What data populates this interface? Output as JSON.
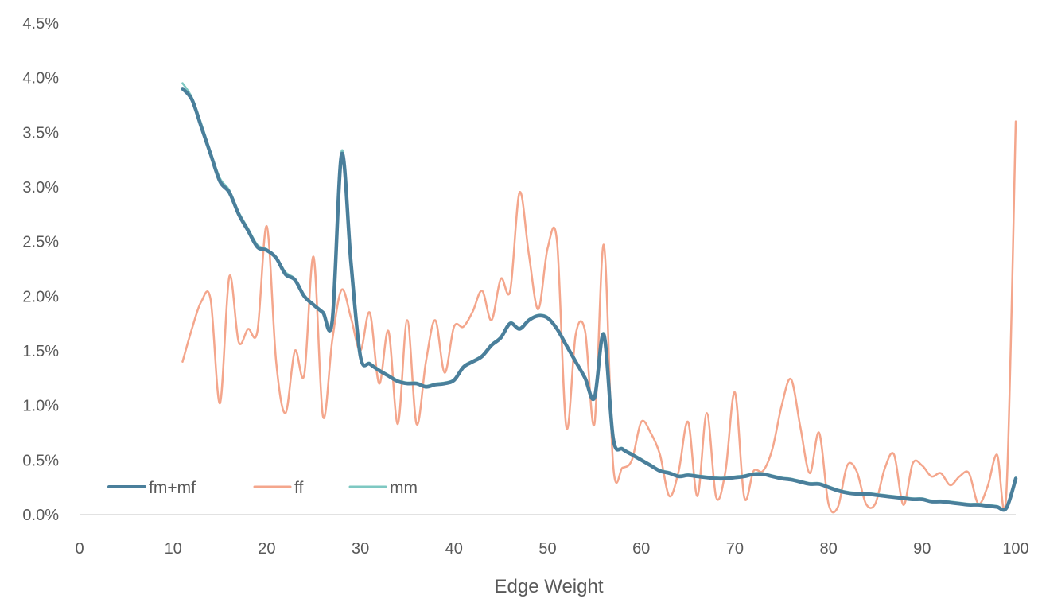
{
  "chart_data": {
    "type": "line",
    "title": "",
    "xlabel": "Edge Weight",
    "ylabel": "",
    "xlim": [
      0,
      100
    ],
    "ylim": [
      0,
      4.5
    ],
    "x_ticks": [
      "0",
      "10",
      "20",
      "30",
      "40",
      "50",
      "60",
      "70",
      "80",
      "90",
      "100"
    ],
    "y_ticks": [
      "0.0%",
      "0.5%",
      "1.0%",
      "1.5%",
      "2.0%",
      "2.5%",
      "3.0%",
      "3.5%",
      "4.0%",
      "4.5%"
    ],
    "grid": false,
    "legend_position": "bottom-left",
    "series": [
      {
        "name": "fm+mf",
        "color": "#4a7f9b",
        "x": [
          11,
          12,
          13,
          14,
          15,
          16,
          17,
          18,
          19,
          20,
          21,
          22,
          23,
          24,
          25,
          26,
          27,
          28,
          29,
          30,
          31,
          32,
          33,
          34,
          35,
          36,
          37,
          38,
          39,
          40,
          41,
          42,
          43,
          44,
          45,
          46,
          47,
          48,
          49,
          50,
          51,
          52,
          53,
          54,
          55,
          56,
          57,
          58,
          59,
          60,
          61,
          62,
          63,
          64,
          65,
          66,
          67,
          68,
          69,
          70,
          71,
          72,
          73,
          74,
          75,
          76,
          77,
          78,
          79,
          80,
          81,
          82,
          83,
          84,
          85,
          86,
          87,
          88,
          89,
          90,
          91,
          92,
          93,
          94,
          95,
          96,
          97,
          98,
          99,
          100
        ],
        "values": [
          3.9,
          3.8,
          3.55,
          3.3,
          3.05,
          2.95,
          2.75,
          2.6,
          2.45,
          2.42,
          2.35,
          2.2,
          2.15,
          2.0,
          1.92,
          1.85,
          1.78,
          3.3,
          2.3,
          1.45,
          1.38,
          1.32,
          1.27,
          1.22,
          1.2,
          1.2,
          1.17,
          1.19,
          1.2,
          1.23,
          1.35,
          1.4,
          1.45,
          1.55,
          1.62,
          1.75,
          1.7,
          1.78,
          1.82,
          1.8,
          1.7,
          1.55,
          1.4,
          1.25,
          1.07,
          1.65,
          0.7,
          0.6,
          0.55,
          0.5,
          0.45,
          0.4,
          0.38,
          0.35,
          0.36,
          0.35,
          0.34,
          0.33,
          0.33,
          0.34,
          0.35,
          0.37,
          0.37,
          0.35,
          0.33,
          0.32,
          0.3,
          0.28,
          0.28,
          0.25,
          0.22,
          0.2,
          0.19,
          0.19,
          0.18,
          0.17,
          0.16,
          0.15,
          0.14,
          0.14,
          0.12,
          0.12,
          0.11,
          0.1,
          0.09,
          0.09,
          0.08,
          0.07,
          0.06,
          0.33
        ]
      },
      {
        "name": "ff",
        "color": "#f4a68c",
        "x": [
          11,
          12,
          13,
          14,
          15,
          16,
          17,
          18,
          19,
          20,
          21,
          22,
          23,
          24,
          25,
          26,
          27,
          28,
          29,
          30,
          31,
          32,
          33,
          34,
          35,
          36,
          37,
          38,
          39,
          40,
          41,
          42,
          43,
          44,
          45,
          46,
          47,
          48,
          49,
          50,
          51,
          52,
          53,
          54,
          55,
          56,
          57,
          58,
          59,
          60,
          61,
          62,
          63,
          64,
          65,
          66,
          67,
          68,
          69,
          70,
          71,
          72,
          73,
          74,
          75,
          76,
          77,
          78,
          79,
          80,
          81,
          82,
          83,
          84,
          85,
          86,
          87,
          88,
          89,
          90,
          91,
          92,
          93,
          94,
          95,
          96,
          97,
          98,
          99,
          100
        ],
        "values": [
          1.4,
          1.7,
          1.95,
          1.97,
          1.02,
          2.18,
          1.58,
          1.7,
          1.68,
          2.64,
          1.4,
          0.93,
          1.5,
          1.28,
          2.36,
          0.9,
          1.6,
          2.06,
          1.8,
          1.5,
          1.85,
          1.2,
          1.68,
          0.83,
          1.78,
          0.83,
          1.4,
          1.78,
          1.3,
          1.72,
          1.72,
          1.86,
          2.05,
          1.78,
          2.16,
          2.05,
          2.95,
          2.38,
          1.88,
          2.44,
          2.5,
          0.8,
          1.65,
          1.68,
          0.83,
          2.47,
          0.45,
          0.43,
          0.5,
          0.85,
          0.75,
          0.55,
          0.17,
          0.4,
          0.85,
          0.17,
          0.93,
          0.16,
          0.4,
          1.12,
          0.16,
          0.4,
          0.4,
          0.6,
          1.0,
          1.24,
          0.8,
          0.38,
          0.75,
          0.1,
          0.07,
          0.45,
          0.4,
          0.1,
          0.1,
          0.42,
          0.55,
          0.09,
          0.47,
          0.45,
          0.35,
          0.38,
          0.27,
          0.35,
          0.38,
          0.1,
          0.26,
          0.55,
          0.2,
          3.6
        ]
      },
      {
        "name": "mm",
        "color": "#7ec8c2",
        "x": [
          11,
          12,
          13,
          14,
          15,
          16,
          17,
          18,
          19,
          20,
          21,
          22,
          23,
          24,
          25,
          26,
          27,
          28,
          29,
          30,
          31,
          32,
          33,
          34,
          35,
          36,
          37,
          38,
          39,
          40,
          41,
          42,
          43,
          44,
          45,
          46,
          47,
          48,
          49,
          50,
          51,
          52,
          53,
          54,
          55,
          56,
          57,
          58,
          59,
          60,
          61,
          62,
          63,
          64,
          65,
          66,
          67,
          68,
          69,
          70,
          71,
          72,
          73,
          74,
          75,
          76,
          77,
          78,
          79,
          80,
          81,
          82,
          83,
          84,
          85,
          86,
          87,
          88,
          89,
          90,
          91,
          92,
          93,
          94,
          95,
          96,
          97,
          98,
          99,
          100
        ],
        "values": [
          3.95,
          3.82,
          3.58,
          3.32,
          3.08,
          2.97,
          2.77,
          2.62,
          2.47,
          2.43,
          2.36,
          2.22,
          2.16,
          2.01,
          1.93,
          1.86,
          1.79,
          3.33,
          2.32,
          1.46,
          1.39,
          1.33,
          1.28,
          1.23,
          1.21,
          1.21,
          1.18,
          1.2,
          1.21,
          1.24,
          1.36,
          1.41,
          1.46,
          1.56,
          1.63,
          1.76,
          1.71,
          1.79,
          1.83,
          1.81,
          1.71,
          1.56,
          1.41,
          1.26,
          1.08,
          1.66,
          0.71,
          0.61,
          0.56,
          0.51,
          0.46,
          0.41,
          0.39,
          0.36,
          0.37,
          0.36,
          0.35,
          0.34,
          0.34,
          0.35,
          0.36,
          0.38,
          0.38,
          0.36,
          0.34,
          0.33,
          0.31,
          0.29,
          0.29,
          0.26,
          0.23,
          0.21,
          0.2,
          0.2,
          0.19,
          0.18,
          0.17,
          0.16,
          0.15,
          0.15,
          0.13,
          0.13,
          0.12,
          0.11,
          0.1,
          0.1,
          0.09,
          0.08,
          0.07,
          0.34
        ]
      }
    ]
  }
}
